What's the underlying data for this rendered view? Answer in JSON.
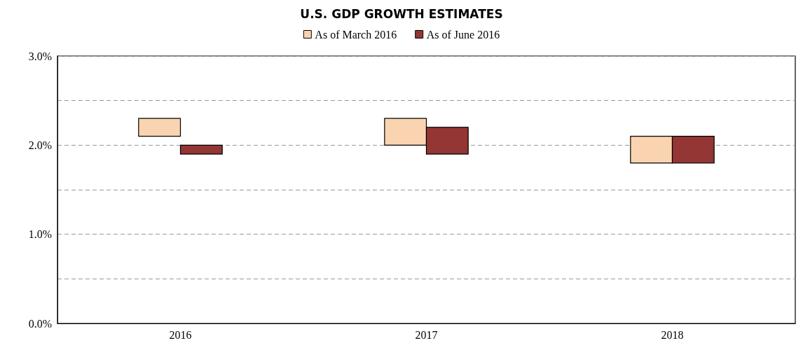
{
  "chart_data": {
    "type": "bar",
    "title": "U.S. GDP GROWTH ESTIMATES",
    "categories": [
      "2016",
      "2017",
      "2018"
    ],
    "series": [
      {
        "name": "As of March 2016",
        "color": "#fad4b0",
        "base": [
          2.1,
          2.0,
          1.8
        ],
        "values": [
          0.2,
          0.3,
          0.3
        ]
      },
      {
        "name": "As of June 2016",
        "color": "#943634",
        "base": [
          1.9,
          1.9,
          1.8
        ],
        "values": [
          0.1,
          0.3,
          0.3
        ]
      }
    ],
    "ylim": [
      0,
      3
    ],
    "yticks": [
      {
        "value": 0,
        "label": "0.0%"
      },
      {
        "value": 0.5,
        "label": null
      },
      {
        "value": 1,
        "label": "1.0%"
      },
      {
        "value": 1.5,
        "label": null
      },
      {
        "value": 2,
        "label": "2.0%"
      },
      {
        "value": 2.5,
        "label": null
      },
      {
        "value": 3,
        "label": "3.0%"
      }
    ],
    "grid": "y",
    "legend": "top"
  }
}
